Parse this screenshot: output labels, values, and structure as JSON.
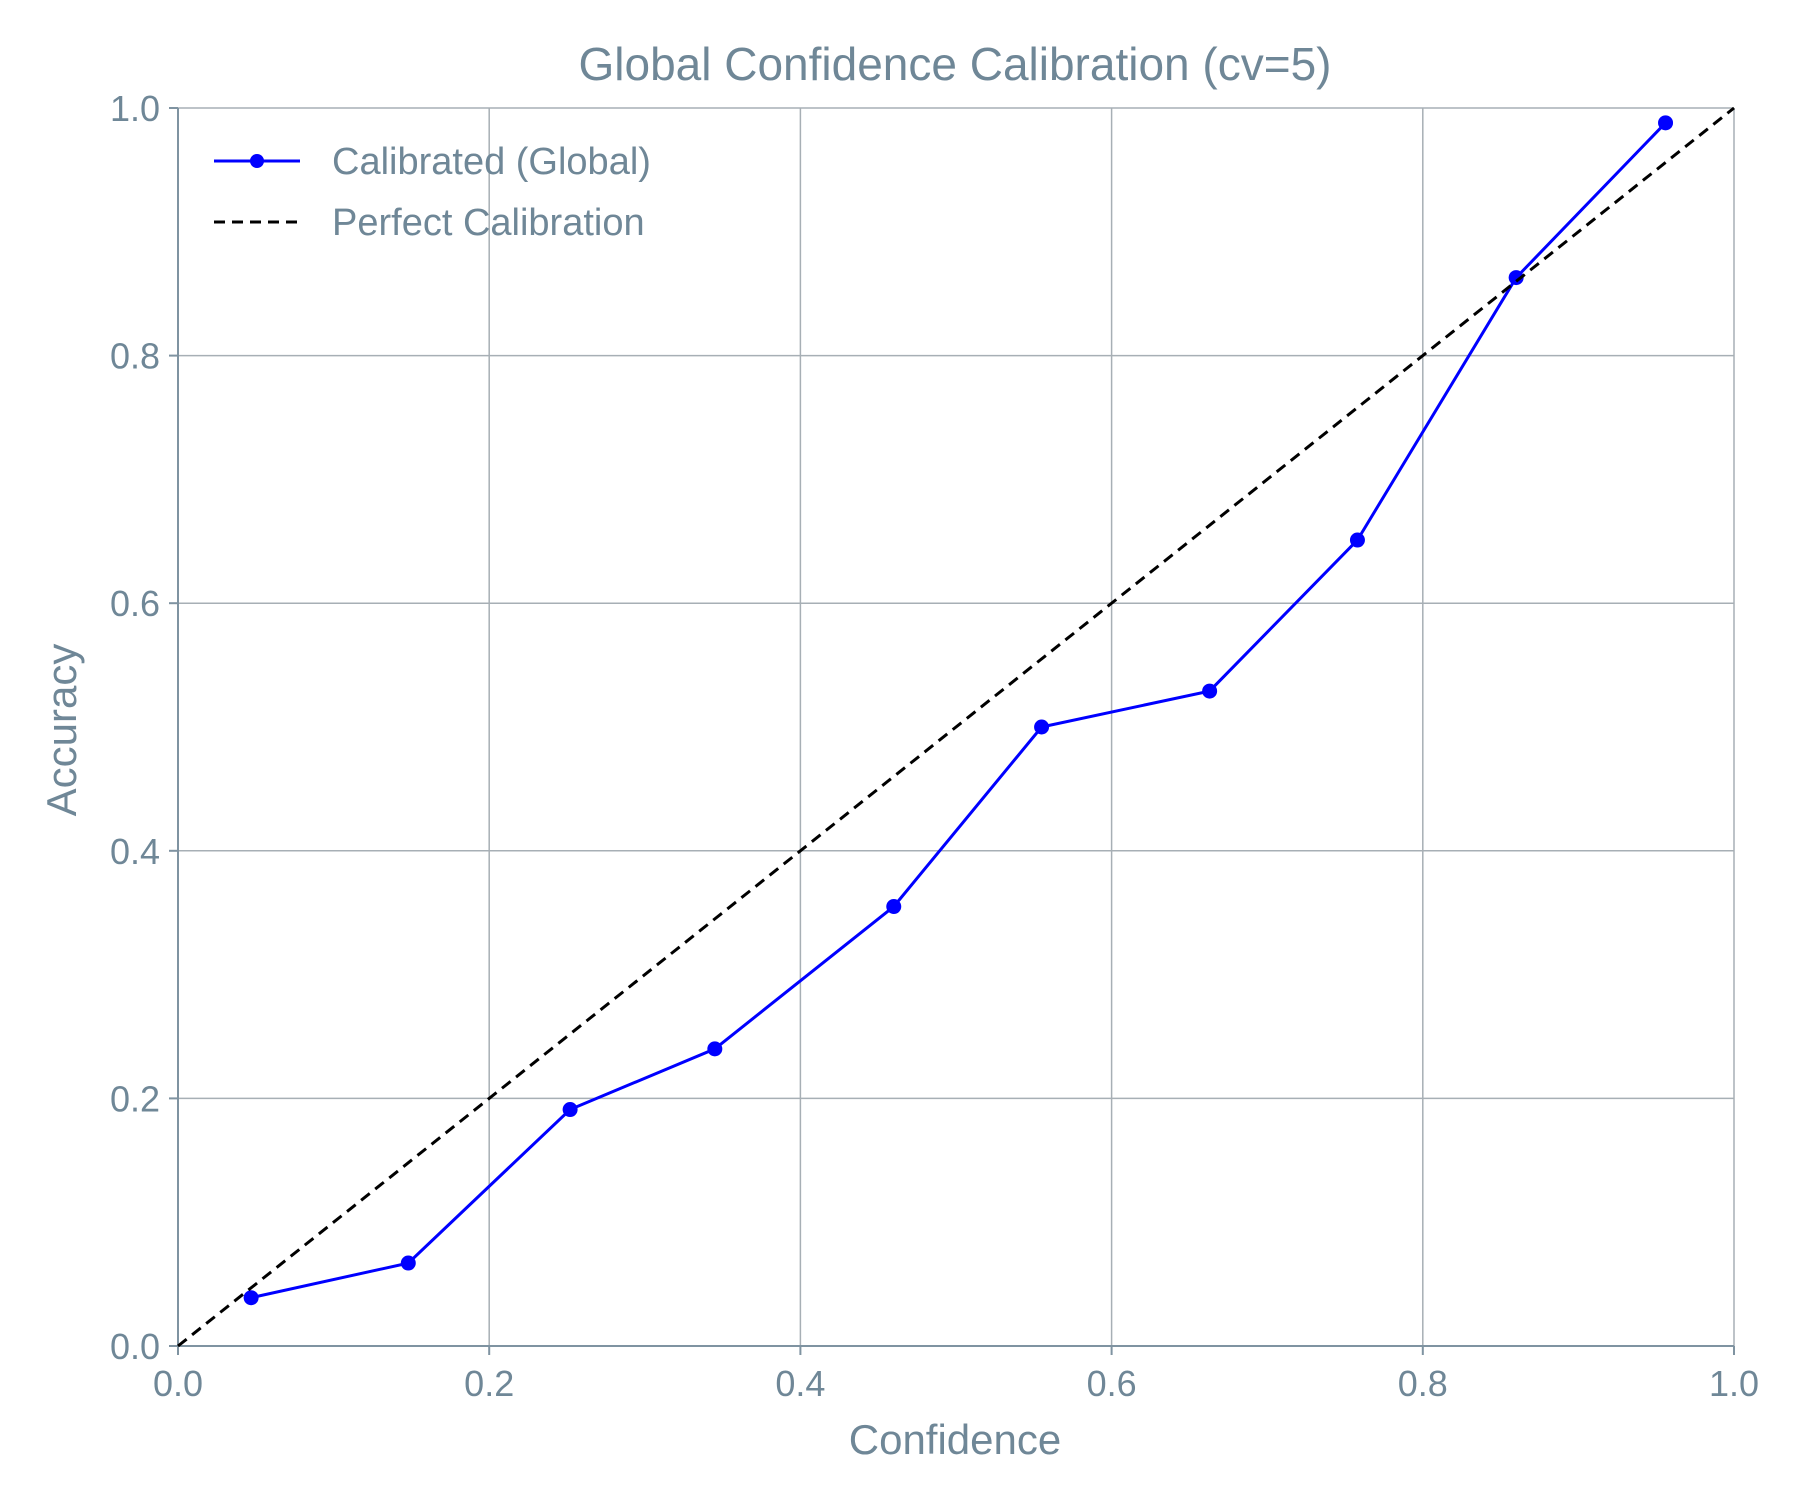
{
  "chart_data": {
    "type": "line",
    "title": "Global Confidence Calibration (cv=5)",
    "xlabel": "Confidence",
    "ylabel": "Accuracy",
    "xlim": [
      0.0,
      1.0
    ],
    "ylim": [
      0.0,
      1.0
    ],
    "xticks": [
      "0.0",
      "0.2",
      "0.4",
      "0.6",
      "0.8",
      "1.0"
    ],
    "yticks": [
      "0.0",
      "0.2",
      "0.4",
      "0.6",
      "0.8",
      "1.0"
    ],
    "grid": true,
    "legend_position": "top-left",
    "series": [
      {
        "name": "Calibrated (Global)",
        "style": "solid-line-with-markers",
        "color": "#0000ff",
        "x": [
          0.047,
          0.148,
          0.252,
          0.345,
          0.46,
          0.555,
          0.663,
          0.758,
          0.86,
          0.956
        ],
        "y": [
          0.039,
          0.067,
          0.191,
          0.24,
          0.355,
          0.5,
          0.529,
          0.651,
          0.863,
          0.988
        ]
      },
      {
        "name": "Perfect Calibration",
        "style": "dashed-line",
        "color": "#000000",
        "x": [
          0.0,
          1.0
        ],
        "y": [
          0.0,
          1.0
        ]
      }
    ]
  }
}
